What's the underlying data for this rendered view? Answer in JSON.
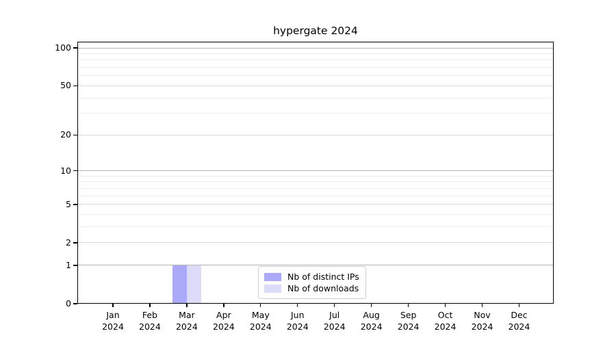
{
  "chart_data": {
    "type": "bar",
    "title": "hypergate 2024",
    "categories": [
      "Jan",
      "Feb",
      "Mar",
      "Apr",
      "May",
      "Jun",
      "Jul",
      "Aug",
      "Sep",
      "Oct",
      "Nov",
      "Dec"
    ],
    "year_label": "2024",
    "series": [
      {
        "name": "Nb of distinct IPs",
        "color": "#aaaaf8",
        "values": [
          0,
          0,
          1,
          0,
          0,
          0,
          0,
          0,
          0,
          0,
          0,
          0
        ]
      },
      {
        "name": "Nb of downloads",
        "color": "#dcdcf8",
        "values": [
          0,
          0,
          1,
          0,
          0,
          0,
          0,
          0,
          0,
          0,
          0,
          0
        ]
      }
    ],
    "xlabel": "",
    "ylabel": "",
    "y_ticks": [
      0,
      1,
      2,
      5,
      10,
      20,
      50,
      100
    ],
    "y_minor_ticks": [
      3,
      4,
      6,
      7,
      8,
      9,
      30,
      40,
      60,
      70,
      80,
      90
    ],
    "ylim": [
      0,
      112
    ],
    "y_scale": "log10(1+y)",
    "grid": "on",
    "legend_position": "inside-bottom-center"
  }
}
